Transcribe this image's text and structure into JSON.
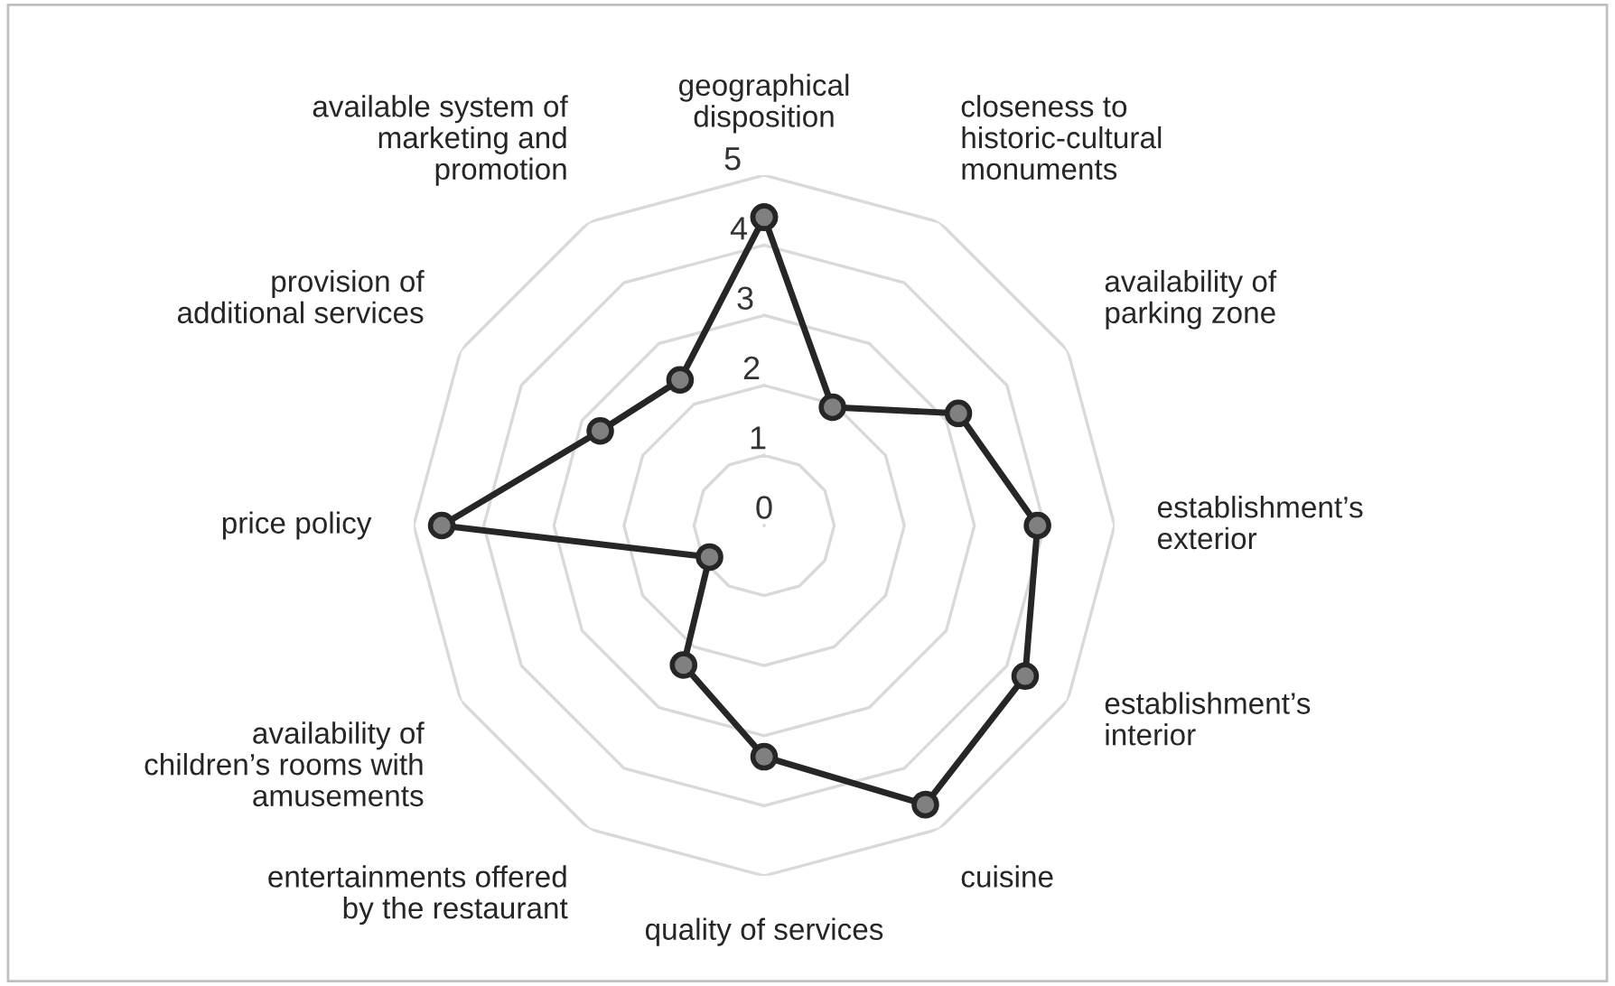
{
  "chart_data": {
    "type": "radar",
    "categories": [
      "geographical disposition",
      "closeness to historic-cultural monuments",
      "availability of parking zone",
      "establishment’s exterior",
      "establishment’s interior",
      "cuisine",
      "quality of services",
      "entertainments offered by the restaurant",
      "availability of children’s rooms with amusements",
      "price policy",
      "provision of additional services",
      "available system of marketing and promotion"
    ],
    "series": [
      {
        "color": "#262626",
        "values": [
          4.4,
          1.95,
          3.2,
          3.9,
          4.3,
          4.6,
          3.3,
          2.3,
          0.9,
          4.6,
          2.7,
          2.4
        ]
      }
    ],
    "ylim": [
      0,
      5
    ],
    "yticks": [
      0,
      1,
      2,
      3,
      4,
      5
    ],
    "grid": true,
    "marker": "circle",
    "line_style": "solid"
  }
}
